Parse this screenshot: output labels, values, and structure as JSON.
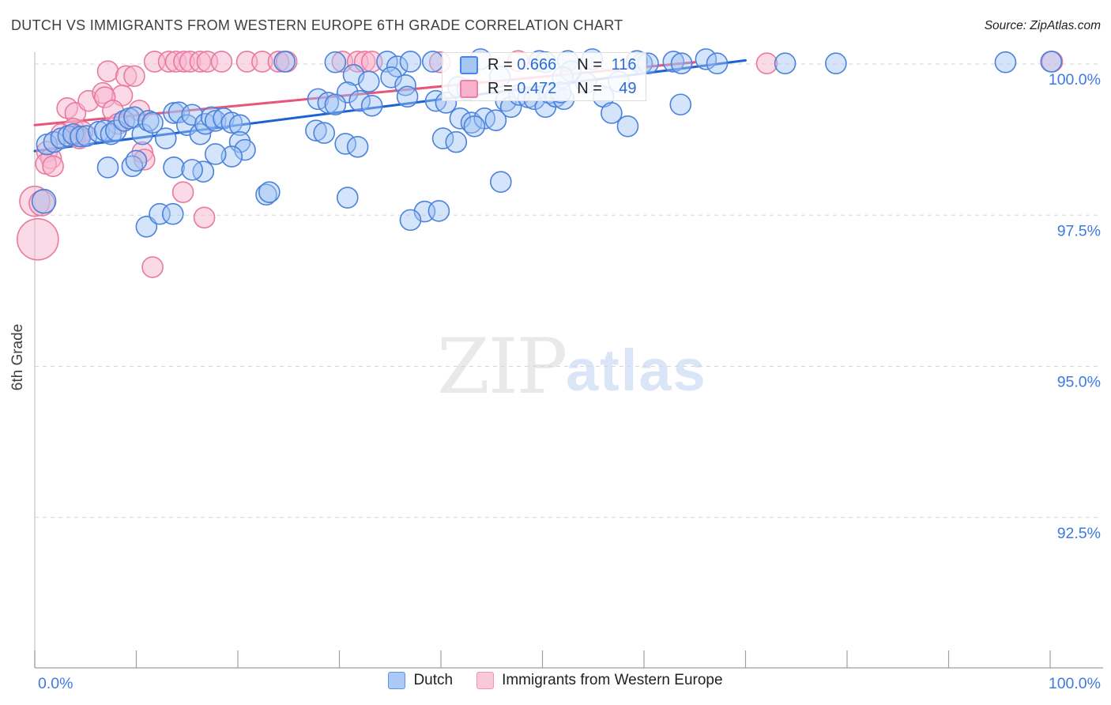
{
  "header": {
    "title": "DUTCH VS IMMIGRANTS FROM WESTERN EUROPE 6TH GRADE CORRELATION CHART",
    "source": "Source: ZipAtlas.com"
  },
  "watermark": {
    "zip": "ZIP",
    "atlas": "atlas"
  },
  "legend_box": {
    "rows": [
      {
        "series": "Dutch",
        "r_label": "R = ",
        "r_value": "0.666",
        "n_label": "N = ",
        "n_value": "116"
      },
      {
        "series": "Immigrants from Western Europe",
        "r_label": "R = ",
        "r_value": "0.472",
        "n_label": "N = ",
        "n_value": "49"
      }
    ]
  },
  "bottom_legend": {
    "items": [
      {
        "label": "Dutch",
        "color": "#abc9f7"
      },
      {
        "label": "Immigrants from Western Europe",
        "color": "#f9c9da"
      }
    ]
  },
  "colors": {
    "blue_stroke": "#4a82dc",
    "blue_fill": "rgba(160,196,245,0.45)",
    "pink_stroke": "#e9799f",
    "pink_fill": "rgba(247,182,208,0.5)",
    "blue_trend": "#1d62d3",
    "pink_trend": "#e8547a",
    "axis_label_blue": "#3d7ae0",
    "grid": "#d5d5d5",
    "spine": "#9e9e9e",
    "title_gray": "#3c4043",
    "watermark_gray": "#e9e9e9",
    "watermark_blue": "#dbe5f8"
  },
  "chart_data": {
    "type": "scatter",
    "title": "DUTCH VS IMMIGRANTS FROM WESTERN EUROPE 6TH GRADE CORRELATION CHART",
    "xlabel_min": "0.0%",
    "xlabel_max": "100.0%",
    "ylabel": "6th Grade",
    "xlim": [
      0,
      100
    ],
    "ylim": [
      90,
      100.3
    ],
    "y_gridlines": [
      100.0,
      97.5,
      95.0,
      92.5
    ],
    "y_tick_labels": [
      "100.0%",
      "97.5%",
      "95.0%",
      "92.5%"
    ],
    "x_tick_count": 11,
    "grid": "dashed-horizontal",
    "legend_position": "bottom-center",
    "series": [
      {
        "name": "Immigrants from Western Europe",
        "R": 0.472,
        "N": 49,
        "points": [
          [
            11.8,
            100.04
          ],
          [
            13.2,
            100.04
          ],
          [
            13.9,
            100.04
          ],
          [
            14.7,
            100.04
          ],
          [
            15.3,
            100.04
          ],
          [
            16.3,
            100.04
          ],
          [
            17.0,
            100.04
          ],
          [
            18.4,
            100.04
          ],
          [
            20.9,
            100.04
          ],
          [
            22.4,
            100.04
          ],
          [
            24.0,
            100.04
          ],
          [
            24.8,
            100.04
          ],
          [
            30.3,
            100.04
          ],
          [
            31.8,
            100.04
          ],
          [
            32.5,
            100.04
          ],
          [
            33.2,
            100.04
          ],
          [
            39.9,
            100.03
          ],
          [
            47.6,
            100.05
          ],
          [
            72.1,
            100.01
          ],
          [
            100.2,
            100.04
          ],
          [
            7.2,
            99.88
          ],
          [
            9.0,
            99.8
          ],
          [
            9.8,
            99.8
          ],
          [
            8.6,
            99.48
          ],
          [
            3.2,
            99.27
          ],
          [
            4.0,
            99.19
          ],
          [
            5.3,
            99.39
          ],
          [
            6.7,
            99.52
          ],
          [
            6.9,
            99.45
          ],
          [
            7.7,
            99.23
          ],
          [
            10.3,
            99.23
          ],
          [
            8.2,
            99.01
          ],
          [
            3.8,
            98.93
          ],
          [
            4.7,
            98.88
          ],
          [
            4.0,
            98.81
          ],
          [
            4.4,
            98.77
          ],
          [
            2.6,
            98.84
          ],
          [
            1.2,
            98.55
          ],
          [
            1.6,
            98.44
          ],
          [
            1.1,
            98.35
          ],
          [
            1.8,
            98.31
          ],
          [
            10.6,
            98.54
          ],
          [
            10.8,
            98.42
          ],
          [
            14.6,
            97.88
          ],
          [
            16.7,
            97.46
          ],
          [
            11.6,
            96.64
          ],
          [
            0.3,
            97.1,
            26
          ],
          [
            0.0,
            97.73,
            19
          ],
          [
            0.7,
            97.7,
            16
          ]
        ],
        "trendline": {
          "x1": 0,
          "y1": 98.99,
          "x2": 65,
          "y2": 100.03
        }
      },
      {
        "name": "Dutch",
        "R": 0.666,
        "N": 116,
        "points": [
          [
            1.2,
            98.67
          ],
          [
            1.9,
            98.71
          ],
          [
            2.6,
            98.77
          ],
          [
            3.3,
            98.81
          ],
          [
            3.8,
            98.84
          ],
          [
            4.5,
            98.8
          ],
          [
            5.1,
            98.81
          ],
          [
            6.3,
            98.88
          ],
          [
            6.9,
            98.9
          ],
          [
            7.5,
            98.84
          ],
          [
            8.0,
            98.9
          ],
          [
            8.8,
            99.06
          ],
          [
            9.3,
            99.1
          ],
          [
            9.8,
            99.12
          ],
          [
            10.6,
            98.84
          ],
          [
            11.2,
            99.06
          ],
          [
            11.6,
            99.03
          ],
          [
            12.9,
            98.77
          ],
          [
            13.7,
            99.19
          ],
          [
            14.2,
            99.2
          ],
          [
            15.0,
            98.99
          ],
          [
            15.5,
            99.16
          ],
          [
            16.3,
            98.84
          ],
          [
            16.8,
            99.01
          ],
          [
            17.4,
            99.12
          ],
          [
            17.8,
            99.06
          ],
          [
            18.6,
            99.1
          ],
          [
            19.4,
            99.03
          ],
          [
            20.2,
            98.99
          ],
          [
            20.2,
            98.71
          ],
          [
            20.7,
            98.58
          ],
          [
            19.4,
            98.47
          ],
          [
            17.8,
            98.51
          ],
          [
            16.6,
            98.22
          ],
          [
            13.7,
            98.29
          ],
          [
            15.5,
            98.25
          ],
          [
            7.2,
            98.29
          ],
          [
            9.6,
            98.31
          ],
          [
            10.0,
            98.4
          ],
          [
            0.9,
            97.73,
            15
          ],
          [
            11.0,
            97.31
          ],
          [
            12.3,
            97.52
          ],
          [
            13.6,
            97.52
          ],
          [
            22.8,
            97.84
          ],
          [
            24.6,
            100.04
          ],
          [
            29.6,
            100.03
          ],
          [
            34.7,
            100.04
          ],
          [
            35.7,
            99.96
          ],
          [
            37.0,
            100.04
          ],
          [
            39.2,
            100.04
          ],
          [
            43.9,
            100.08
          ],
          [
            49.7,
            100.05
          ],
          [
            50.3,
            100.03
          ],
          [
            52.5,
            100.05
          ],
          [
            52.8,
            99.88
          ],
          [
            54.9,
            100.08
          ],
          [
            59.3,
            100.05
          ],
          [
            59.8,
            100.01
          ],
          [
            60.4,
            100.01
          ],
          [
            62.9,
            100.04
          ],
          [
            63.7,
            100.01
          ],
          [
            66.1,
            100.08
          ],
          [
            67.2,
            100.01
          ],
          [
            73.9,
            100.01
          ],
          [
            78.9,
            100.01
          ],
          [
            95.6,
            100.03
          ],
          [
            100.1,
            100.04
          ],
          [
            31.4,
            99.82
          ],
          [
            32.9,
            99.71
          ],
          [
            35.1,
            99.78
          ],
          [
            36.5,
            99.65
          ],
          [
            30.8,
            99.53
          ],
          [
            27.9,
            99.42
          ],
          [
            28.9,
            99.36
          ],
          [
            29.6,
            99.33
          ],
          [
            32.0,
            99.39
          ],
          [
            33.2,
            99.31
          ],
          [
            36.7,
            99.46
          ],
          [
            39.5,
            99.39
          ],
          [
            40.5,
            99.36
          ],
          [
            41.7,
            99.62
          ],
          [
            42.6,
            99.57
          ],
          [
            45.8,
            99.79
          ],
          [
            46.4,
            99.39
          ],
          [
            46.9,
            99.29
          ],
          [
            47.7,
            99.49
          ],
          [
            48.6,
            99.45
          ],
          [
            49.2,
            99.42
          ],
          [
            50.3,
            99.29
          ],
          [
            50.7,
            99.52
          ],
          [
            51.3,
            99.46
          ],
          [
            52.1,
            99.42
          ],
          [
            52.0,
            99.78
          ],
          [
            54.3,
            99.69
          ],
          [
            56.0,
            99.46
          ],
          [
            57.5,
            99.71
          ],
          [
            51.8,
            99.53
          ],
          [
            41.9,
            99.1
          ],
          [
            43.0,
            99.03
          ],
          [
            44.3,
            99.1
          ],
          [
            45.4,
            99.07
          ],
          [
            43.3,
            98.97
          ],
          [
            27.7,
            98.9
          ],
          [
            28.5,
            98.86
          ],
          [
            30.6,
            98.68
          ],
          [
            31.8,
            98.63
          ],
          [
            40.2,
            98.77
          ],
          [
            41.5,
            98.71
          ],
          [
            56.8,
            99.19
          ],
          [
            58.4,
            98.97
          ],
          [
            63.6,
            99.33
          ],
          [
            23.1,
            97.88
          ],
          [
            30.8,
            97.79
          ],
          [
            38.4,
            97.56
          ],
          [
            39.8,
            97.57
          ],
          [
            37.0,
            97.42
          ],
          [
            45.9,
            98.05
          ]
        ],
        "trendline": {
          "x1": 0,
          "y1": 98.56,
          "x2": 70,
          "y2": 100.06
        }
      }
    ]
  }
}
